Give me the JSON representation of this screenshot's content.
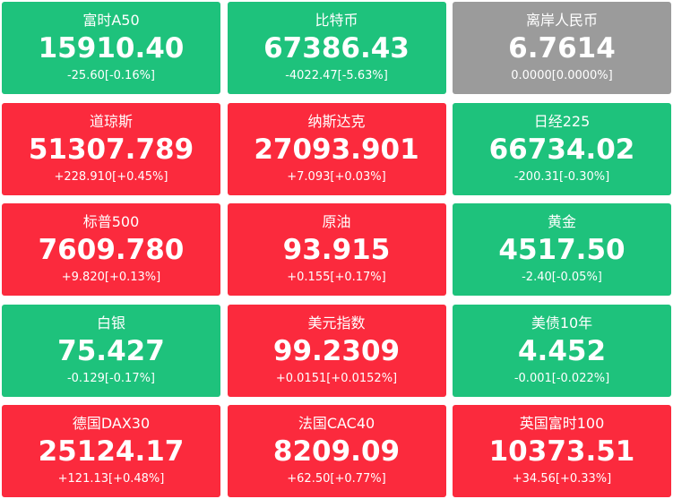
{
  "tiles": [
    {
      "name": "富时A50",
      "price": "15910.40",
      "change": "-25.60[-0.16%]",
      "color": "#1ec27c"
    },
    {
      "name": "比特币",
      "price": "67386.43",
      "change": "-4022.47[-5.63%]",
      "color": "#1ec27c"
    },
    {
      "name": "离岸人民币",
      "price": "6.7614",
      "change": "0.0000[0.0000%]",
      "color": "#9b9b9b"
    },
    {
      "name": "道琼斯",
      "price": "51307.789",
      "change": "+228.910[+0.45%]",
      "color": "#fb2a3d"
    },
    {
      "name": "纳斯达克",
      "price": "27093.901",
      "change": "+7.093[+0.03%]",
      "color": "#fb2a3d"
    },
    {
      "name": "日经225",
      "price": "66734.02",
      "change": "-200.31[-0.30%]",
      "color": "#1ec27c"
    },
    {
      "name": "标普500",
      "price": "7609.780",
      "change": "+9.820[+0.13%]",
      "color": "#fb2a3d"
    },
    {
      "name": "原油",
      "price": "93.915",
      "change": "+0.155[+0.17%]",
      "color": "#fb2a3d"
    },
    {
      "name": "黄金",
      "price": "4517.50",
      "change": "-2.40[-0.05%]",
      "color": "#1ec27c"
    },
    {
      "name": "白银",
      "price": "75.427",
      "change": "-0.129[-0.17%]",
      "color": "#1ec27c"
    },
    {
      "name": "美元指数",
      "price": "99.2309",
      "change": "+0.0151[+0.0152%]",
      "color": "#fb2a3d"
    },
    {
      "name": "美债10年",
      "price": "4.452",
      "change": "-0.001[-0.022%]",
      "color": "#1ec27c"
    },
    {
      "name": "德国DAX30",
      "price": "25124.17",
      "change": "+121.13[+0.48%]",
      "color": "#fb2a3d"
    },
    {
      "name": "法国CAC40",
      "price": "8209.09",
      "change": "+62.50[+0.77%]",
      "color": "#fb2a3d"
    },
    {
      "name": "英国富时100",
      "price": "10373.51",
      "change": "+34.56[+0.33%]",
      "color": "#fb2a3d"
    }
  ]
}
